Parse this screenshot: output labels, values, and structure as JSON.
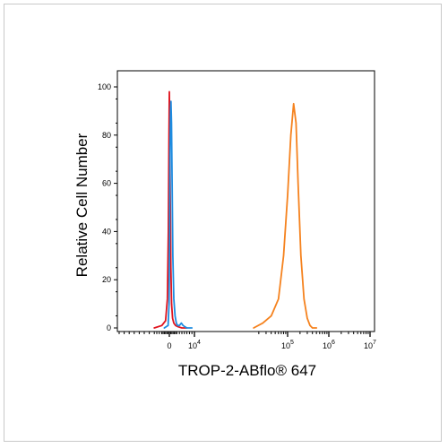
{
  "chart_data": {
    "type": "line",
    "xlabel": "TROP-2-ABflo® 647",
    "ylabel": "Relative Cell Number",
    "x_scale": "biexponential",
    "ylim": [
      0,
      100
    ],
    "y_ticks": [
      {
        "value": 0,
        "label": "0"
      },
      {
        "value": 20,
        "label": "20"
      },
      {
        "value": 40,
        "label": "40"
      },
      {
        "value": 60,
        "label": "60"
      },
      {
        "value": 80,
        "label": "80"
      },
      {
        "value": 100,
        "label": "100"
      }
    ],
    "x_ticks": [
      {
        "value": 0,
        "base": "0",
        "exp": ""
      },
      {
        "value": 10000,
        "base": "10",
        "exp": "4"
      },
      {
        "value": 100000,
        "base": "10",
        "exp": "5"
      },
      {
        "value": 1000000,
        "base": "10",
        "exp": "6"
      },
      {
        "value": 10000000,
        "base": "10",
        "exp": "7"
      }
    ],
    "grid": false,
    "series": [
      {
        "color": "#e0141e",
        "x": [
          -6000,
          -3000,
          -1500,
          -800,
          -400,
          -150,
          0,
          150,
          350,
          600,
          900,
          1300,
          1800,
          2500,
          3500,
          5000,
          7000
        ],
        "y": [
          0,
          1,
          3,
          12,
          40,
          80,
          98,
          85,
          55,
          25,
          10,
          4,
          2,
          1,
          0.5,
          0,
          0
        ]
      },
      {
        "color": "#1e8ce0",
        "x": [
          -2000,
          -500,
          -100,
          100,
          250,
          450,
          650,
          850,
          1100,
          1400,
          1800,
          2300,
          2800,
          3300,
          4000,
          4800,
          5500,
          6200,
          7000,
          8000,
          9000
        ],
        "y": [
          0,
          1,
          10,
          40,
          72,
          90,
          94,
          85,
          60,
          30,
          12,
          5,
          2,
          1,
          1,
          2,
          1,
          0.5,
          0,
          0,
          0
        ]
      },
      {
        "color": "#f5821e",
        "x": [
          15000,
          25000,
          40000,
          60000,
          80000,
          100000,
          120000,
          140000,
          160000,
          180000,
          210000,
          250000,
          300000,
          350000,
          400000,
          500000
        ],
        "y": [
          0,
          2,
          5,
          12,
          30,
          55,
          80,
          93,
          85,
          60,
          30,
          12,
          4,
          1,
          0,
          0
        ]
      }
    ]
  }
}
